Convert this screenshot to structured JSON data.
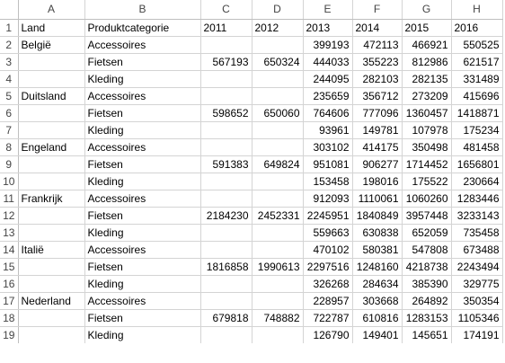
{
  "columns": [
    "A",
    "B",
    "C",
    "D",
    "E",
    "F",
    "G",
    "H"
  ],
  "rows": [
    [
      "Land",
      "Produktcategorie",
      "2011",
      "2012",
      "2013",
      "2014",
      "2015",
      "2016"
    ],
    [
      "België",
      "Accessoires",
      "",
      "",
      "399193",
      "472113",
      "466921",
      "550525"
    ],
    [
      "",
      "Fietsen",
      "567193",
      "650324",
      "444033",
      "355223",
      "812986",
      "621517"
    ],
    [
      "",
      "Kleding",
      "",
      "",
      "244095",
      "282103",
      "282135",
      "331489"
    ],
    [
      "Duitsland",
      "Accessoires",
      "",
      "",
      "235659",
      "356712",
      "273209",
      "415696"
    ],
    [
      "",
      "Fietsen",
      "598652",
      "650060",
      "764606",
      "777096",
      "1360457",
      "1418871"
    ],
    [
      "",
      "Kleding",
      "",
      "",
      "93961",
      "149781",
      "107978",
      "175234"
    ],
    [
      "Engeland",
      "Accessoires",
      "",
      "",
      "303102",
      "414175",
      "350498",
      "481458"
    ],
    [
      "",
      "Fietsen",
      "591383",
      "649824",
      "951081",
      "906277",
      "1714452",
      "1656801"
    ],
    [
      "",
      "Kleding",
      "",
      "",
      "153458",
      "198016",
      "175522",
      "230664"
    ],
    [
      "Frankrijk",
      "Accessoires",
      "",
      "",
      "912093",
      "1110061",
      "1060260",
      "1283446"
    ],
    [
      "",
      "Fietsen",
      "2184230",
      "2452331",
      "2245951",
      "1840849",
      "3957448",
      "3233143"
    ],
    [
      "",
      "Kleding",
      "",
      "",
      "559663",
      "630838",
      "652059",
      "735458"
    ],
    [
      "Italië",
      "Accessoires",
      "",
      "",
      "470102",
      "580381",
      "547808",
      "673488"
    ],
    [
      "",
      "Fietsen",
      "1816858",
      "1990613",
      "2297516",
      "1248160",
      "4218738",
      "2243494"
    ],
    [
      "",
      "Kleding",
      "",
      "",
      "326268",
      "284634",
      "385390",
      "329775"
    ],
    [
      "Nederland",
      "Accessoires",
      "",
      "",
      "228957",
      "303668",
      "264892",
      "350354"
    ],
    [
      "",
      "Fietsen",
      "679818",
      "748882",
      "722787",
      "610816",
      "1283153",
      "1105346"
    ],
    [
      "",
      "Kleding",
      "",
      "",
      "126790",
      "149401",
      "145651",
      "174191"
    ]
  ]
}
